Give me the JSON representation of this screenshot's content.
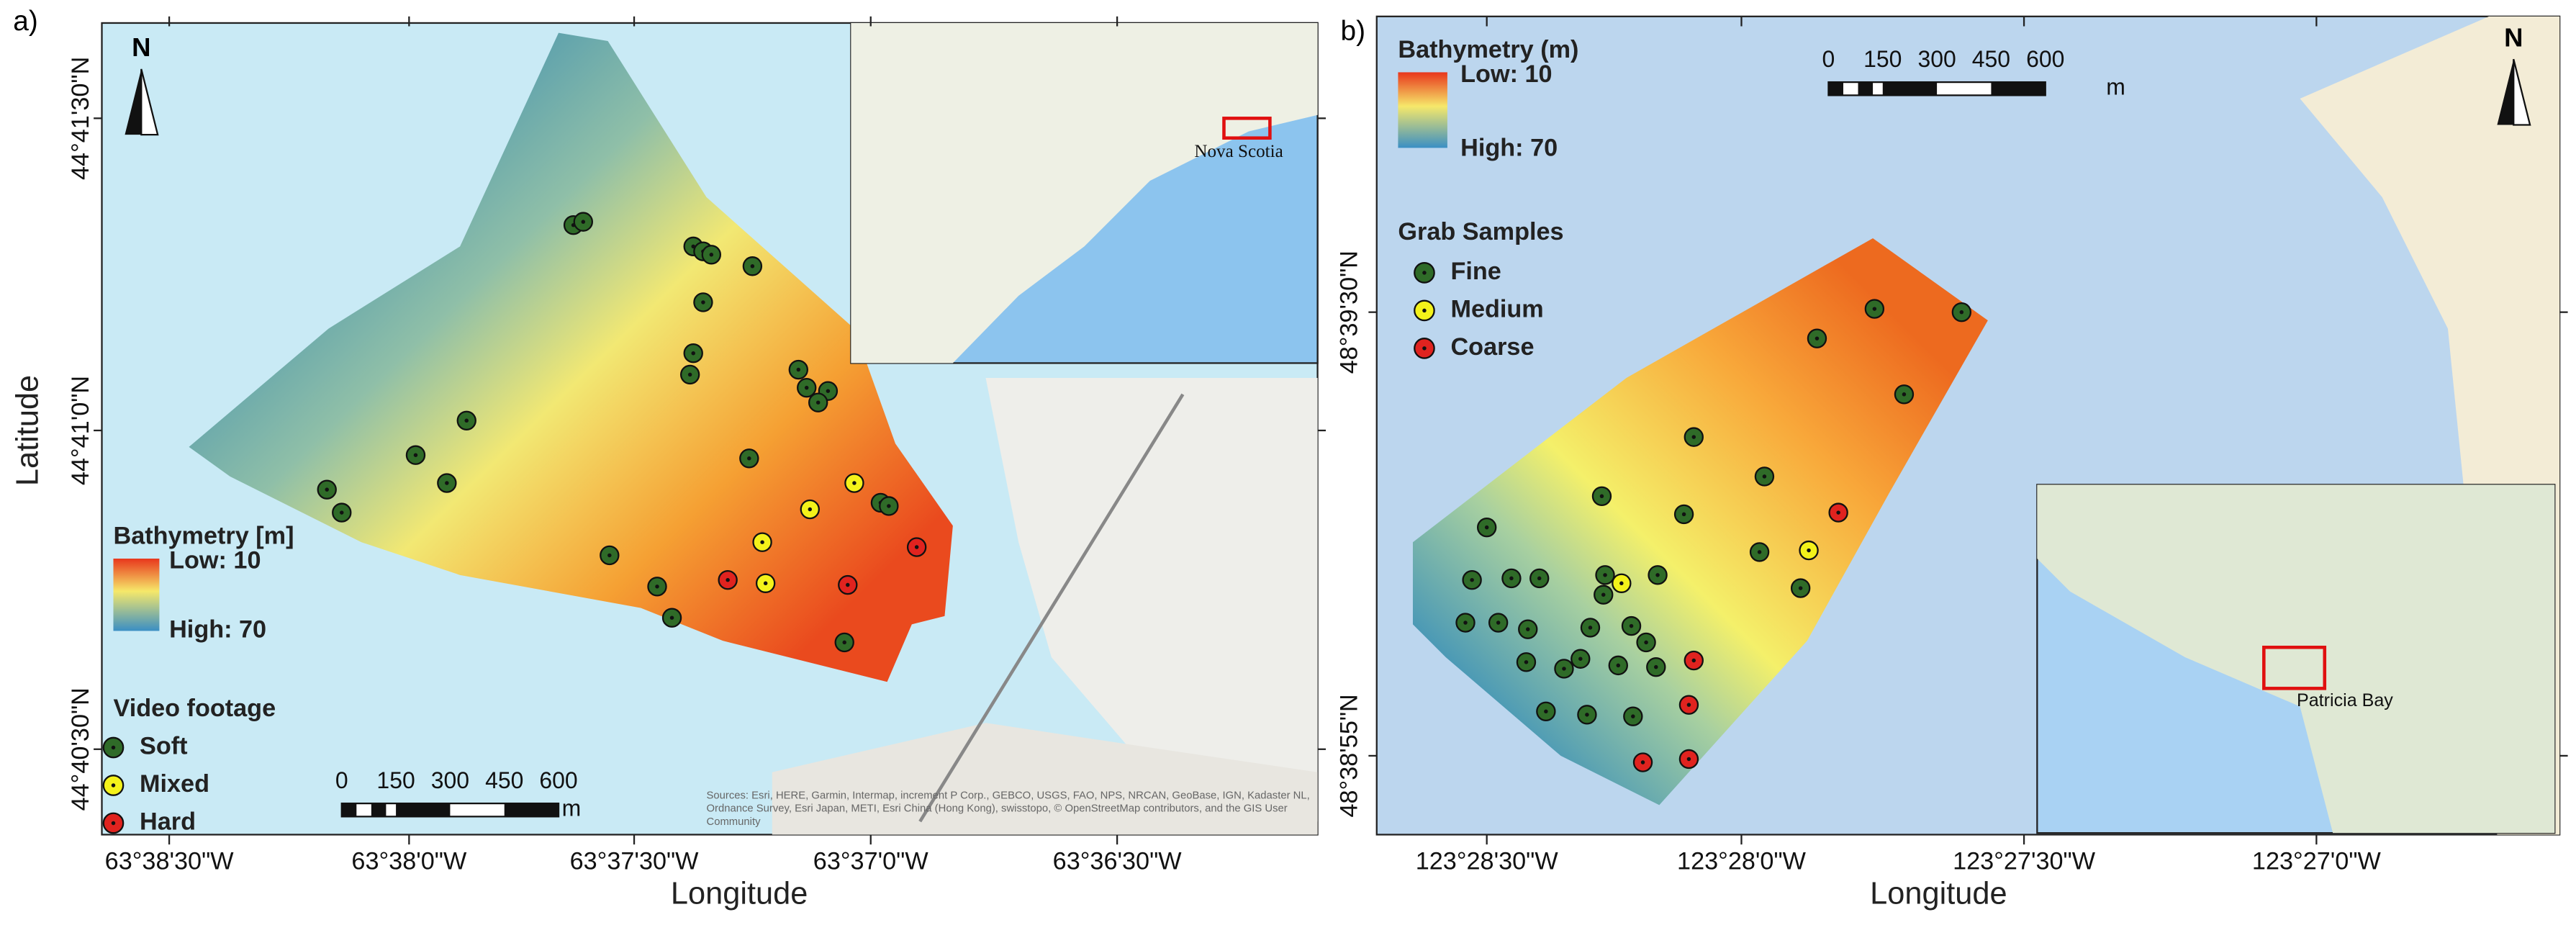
{
  "panels": [
    {
      "label": "a)",
      "x_axis_label": "Longitude",
      "y_axis_label": "Latitude",
      "x_ticks": [
        "63°38'30\"W",
        "63°38'0\"W",
        "63°37'30\"W",
        "63°37'0\"W",
        "63°36'30\"W"
      ],
      "y_ticks": [
        "44°41'30\"N",
        "44°41'0\"N",
        "44°40'30\"N"
      ],
      "bathymetry": {
        "title": "Bathymetry [m]",
        "low": "Low: 10",
        "high": "High: 70"
      },
      "samples": {
        "title": "Video footage",
        "items": [
          {
            "label": "Soft",
            "color": "#2f6b28"
          },
          {
            "label": "Mixed",
            "color": "#f4f21a"
          },
          {
            "label": "Hard",
            "color": "#e0231f"
          }
        ]
      },
      "scale_bar": {
        "ticks": [
          "0",
          "150",
          "300",
          "450",
          "600"
        ],
        "unit": "m"
      },
      "north": "N",
      "inset_label": "Nova Scotia",
      "attribution": "Sources: Esri, HERE, Garmin, Intermap, increment P Corp., GEBCO, USGS, FAO, NPS, NRCAN, GeoBase, IGN, Kadaster NL, Ordnance Survey, Esri Japan, METI, Esri China (Hong Kong), swisstopo, © OpenStreetMap contributors, and the GIS User Community"
    },
    {
      "label": "b)",
      "x_axis_label": "Longitude",
      "x_ticks": [
        "123°28'30\"W",
        "123°28'0\"W",
        "123°27'30\"W",
        "123°27'0\"W"
      ],
      "y_ticks": [
        "48°39'30\"N",
        "48°38'55\"N"
      ],
      "bathymetry": {
        "title": "Bathymetry (m)",
        "low": "Low: 10",
        "high": "High: 70"
      },
      "samples": {
        "title": "Grab Samples",
        "items": [
          {
            "label": "Fine",
            "color": "#2f6b28"
          },
          {
            "label": "Medium",
            "color": "#f4f21a"
          },
          {
            "label": "Coarse",
            "color": "#e0231f"
          }
        ]
      },
      "scale_bar": {
        "ticks": [
          "0",
          "150",
          "300",
          "450",
          "600"
        ],
        "unit": "m"
      },
      "north": "N",
      "inset_label": "Patricia Bay"
    }
  ]
}
